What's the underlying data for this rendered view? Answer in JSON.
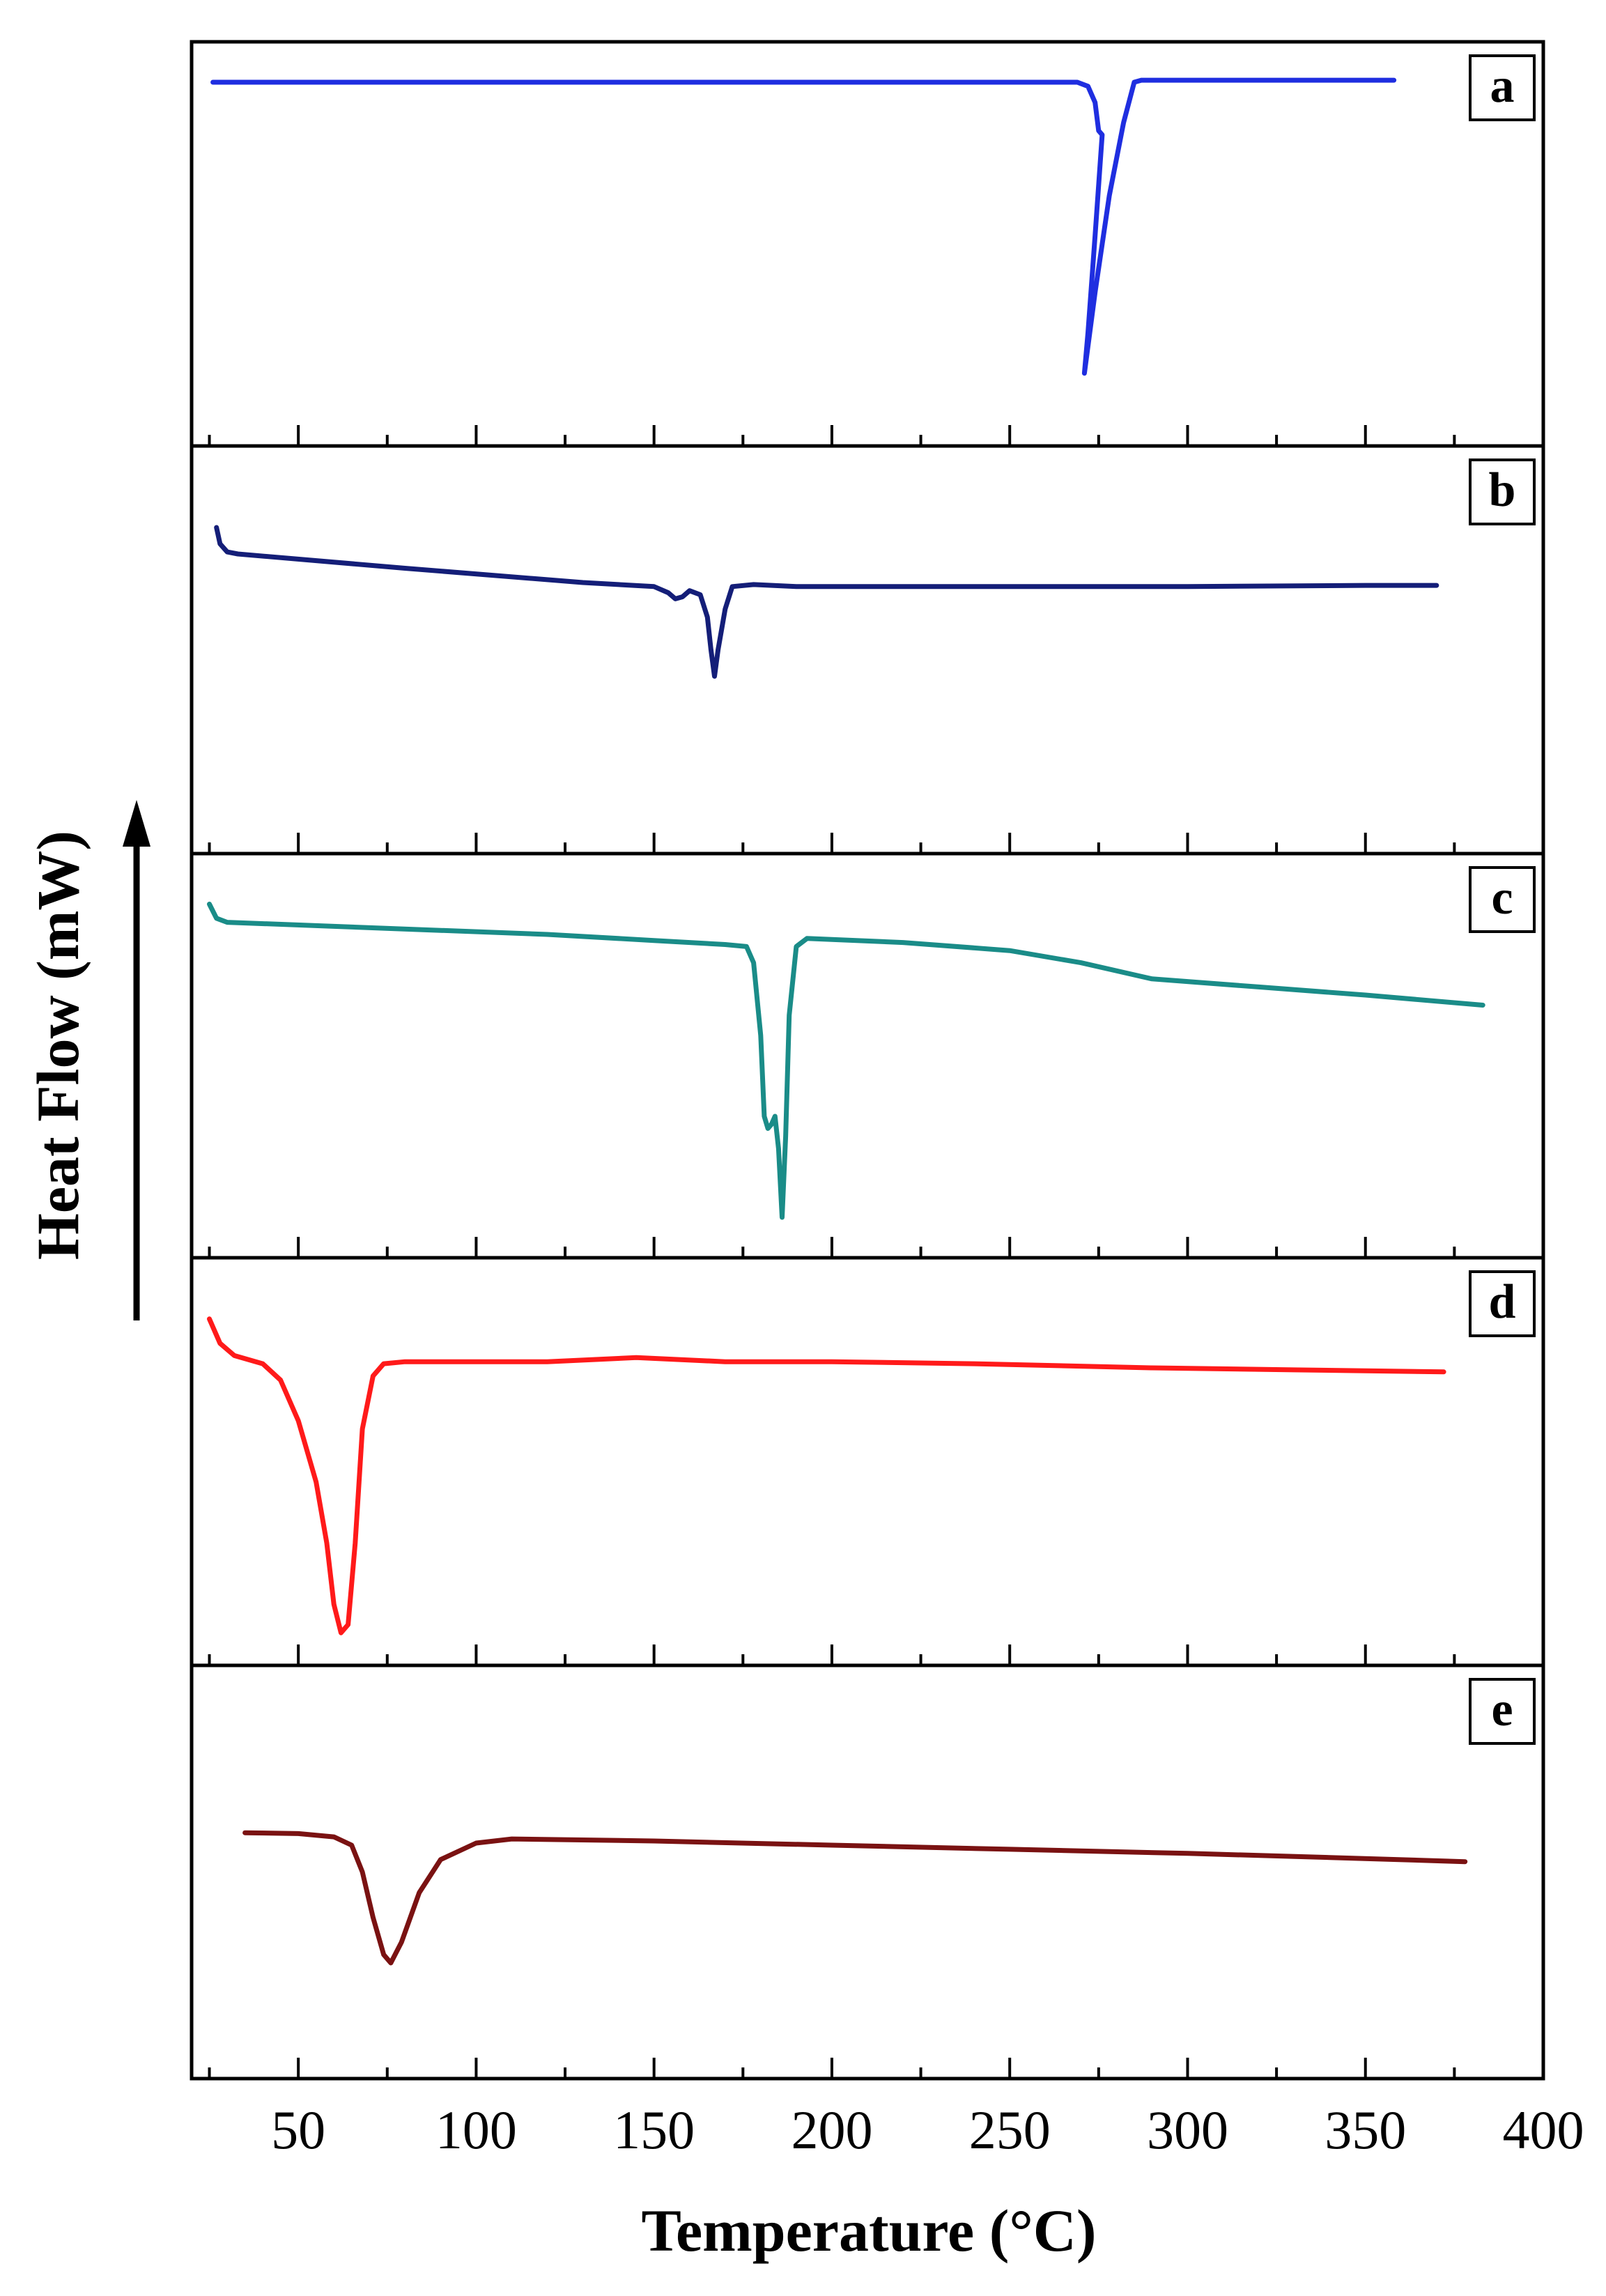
{
  "chart_data": {
    "type": "line",
    "title": "",
    "xlabel": "Temperature (°C)",
    "ylabel": "Heat Flow (mW)",
    "xlim": [
      20,
      400
    ],
    "xticks": [
      50,
      100,
      150,
      200,
      250,
      300,
      350,
      400
    ],
    "xtick_labels": [
      "50",
      "100",
      "150",
      "200",
      "250",
      "300",
      "350",
      "400"
    ],
    "grid": false,
    "layout": "five stacked panels sharing the x axis",
    "series": [
      {
        "name": "a",
        "label": "a",
        "color": "#1f2ee0",
        "ylim": [
          0,
          1
        ],
        "points": [
          [
            26,
            0.9
          ],
          [
            100,
            0.9
          ],
          [
            200,
            0.9
          ],
          [
            260,
            0.9
          ],
          [
            269,
            0.9
          ],
          [
            272,
            0.89
          ],
          [
            274,
            0.85
          ],
          [
            275,
            0.78
          ],
          [
            276,
            0.77
          ],
          [
            274,
            0.52
          ],
          [
            272,
            0.28
          ],
          [
            271,
            0.18
          ],
          [
            274,
            0.38
          ],
          [
            278,
            0.62
          ],
          [
            282,
            0.8
          ],
          [
            285,
            0.9
          ],
          [
            287,
            0.905
          ],
          [
            300,
            0.905
          ],
          [
            330,
            0.905
          ],
          [
            358,
            0.905
          ]
        ]
      },
      {
        "name": "b",
        "label": "b",
        "color": "#141e78",
        "ylim": [
          0,
          1
        ],
        "points": [
          [
            27,
            0.8
          ],
          [
            28,
            0.76
          ],
          [
            30,
            0.74
          ],
          [
            33,
            0.735
          ],
          [
            80,
            0.7
          ],
          [
            130,
            0.665
          ],
          [
            150,
            0.655
          ],
          [
            154,
            0.64
          ],
          [
            156,
            0.625
          ],
          [
            158,
            0.63
          ],
          [
            160,
            0.645
          ],
          [
            163,
            0.635
          ],
          [
            165,
            0.58
          ],
          [
            166,
            0.5
          ],
          [
            167,
            0.435
          ],
          [
            168,
            0.5
          ],
          [
            170,
            0.6
          ],
          [
            172,
            0.655
          ],
          [
            178,
            0.66
          ],
          [
            190,
            0.655
          ],
          [
            250,
            0.655
          ],
          [
            300,
            0.655
          ],
          [
            350,
            0.658
          ],
          [
            370,
            0.658
          ]
        ]
      },
      {
        "name": "c",
        "label": "c",
        "color": "#1a8c88",
        "ylim": [
          0,
          1
        ],
        "points": [
          [
            25,
            0.875
          ],
          [
            27,
            0.84
          ],
          [
            30,
            0.83
          ],
          [
            60,
            0.82
          ],
          [
            120,
            0.8
          ],
          [
            150,
            0.785
          ],
          [
            170,
            0.775
          ],
          [
            176,
            0.77
          ],
          [
            178,
            0.73
          ],
          [
            180,
            0.55
          ],
          [
            181,
            0.35
          ],
          [
            182,
            0.32
          ],
          [
            183,
            0.33
          ],
          [
            184,
            0.35
          ],
          [
            185,
            0.27
          ],
          [
            186,
            0.1
          ],
          [
            187,
            0.3
          ],
          [
            188,
            0.6
          ],
          [
            190,
            0.77
          ],
          [
            193,
            0.79
          ],
          [
            220,
            0.78
          ],
          [
            250,
            0.76
          ],
          [
            270,
            0.73
          ],
          [
            290,
            0.69
          ],
          [
            320,
            0.67
          ],
          [
            350,
            0.65
          ],
          [
            383,
            0.625
          ]
        ]
      },
      {
        "name": "d",
        "label": "d",
        "color": "#ff1a1a",
        "ylim": [
          0,
          1
        ],
        "points": [
          [
            25,
            0.85
          ],
          [
            28,
            0.79
          ],
          [
            32,
            0.76
          ],
          [
            40,
            0.74
          ],
          [
            45,
            0.7
          ],
          [
            50,
            0.6
          ],
          [
            55,
            0.45
          ],
          [
            58,
            0.3
          ],
          [
            60,
            0.15
          ],
          [
            62,
            0.08
          ],
          [
            64,
            0.1
          ],
          [
            66,
            0.3
          ],
          [
            68,
            0.58
          ],
          [
            71,
            0.71
          ],
          [
            74,
            0.74
          ],
          [
            80,
            0.745
          ],
          [
            120,
            0.745
          ],
          [
            145,
            0.755
          ],
          [
            170,
            0.745
          ],
          [
            200,
            0.745
          ],
          [
            240,
            0.74
          ],
          [
            290,
            0.73
          ],
          [
            330,
            0.725
          ],
          [
            372,
            0.72
          ]
        ]
      },
      {
        "name": "e",
        "label": "e",
        "color": "#7a1212",
        "ylim": [
          0,
          1
        ],
        "points": [
          [
            35,
            0.595
          ],
          [
            50,
            0.593
          ],
          [
            60,
            0.585
          ],
          [
            65,
            0.565
          ],
          [
            68,
            0.5
          ],
          [
            71,
            0.39
          ],
          [
            74,
            0.3
          ],
          [
            76,
            0.28
          ],
          [
            79,
            0.33
          ],
          [
            84,
            0.45
          ],
          [
            90,
            0.53
          ],
          [
            100,
            0.57
          ],
          [
            110,
            0.58
          ],
          [
            150,
            0.575
          ],
          [
            200,
            0.565
          ],
          [
            250,
            0.555
          ],
          [
            300,
            0.545
          ],
          [
            340,
            0.535
          ],
          [
            378,
            0.525
          ]
        ]
      }
    ]
  }
}
